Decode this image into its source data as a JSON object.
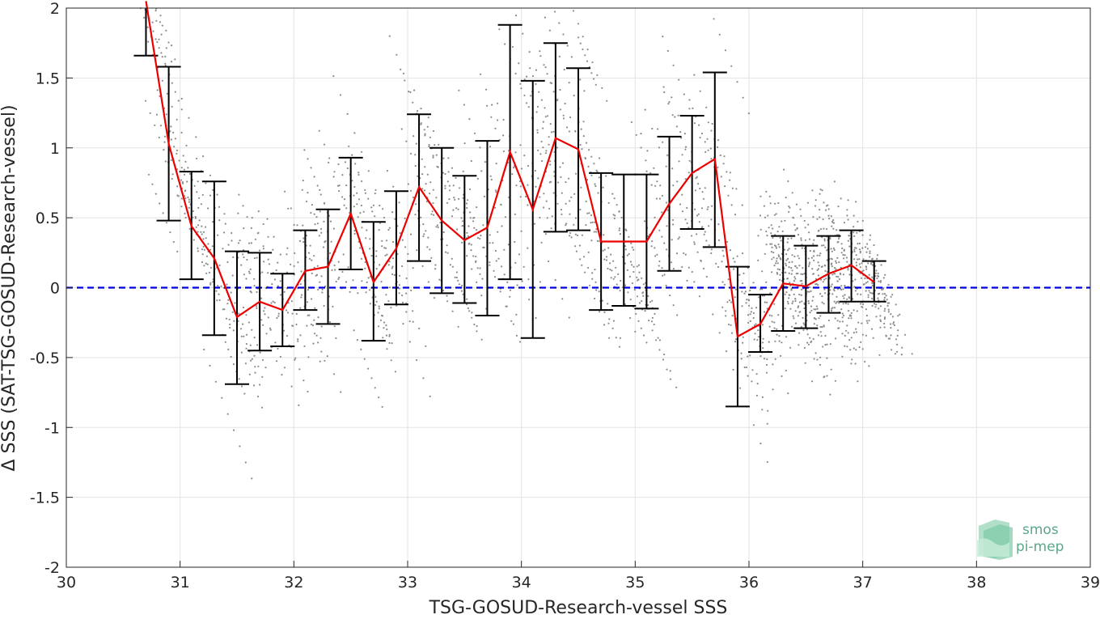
{
  "chart_data": {
    "type": "line",
    "title": "",
    "xlabel": "TSG-GOSUD-Research-vessel SSS",
    "ylabel": "Δ SSS (SAT-TSG-GOSUD-Research-vessel)",
    "xlim": [
      30,
      39
    ],
    "ylim": [
      -2,
      2
    ],
    "xticks": [
      30,
      31,
      32,
      33,
      34,
      35,
      36,
      37,
      38,
      39
    ],
    "yticks": [
      -2,
      -1.5,
      -1,
      -0.5,
      0,
      0.5,
      1,
      1.5,
      2
    ],
    "xtick_labels": [
      "30",
      "31",
      "32",
      "33",
      "34",
      "35",
      "36",
      "37",
      "38",
      "39"
    ],
    "ytick_labels": [
      "-2",
      "-1.5",
      "-1",
      "-0.5",
      "0",
      "0.5",
      "1",
      "1.5",
      "2"
    ],
    "grid": true,
    "reference_line": {
      "y": 0,
      "color": "#0000dd",
      "style": "dashed"
    },
    "mean_series": {
      "color": "#ee0000",
      "x": [
        30.7,
        30.9,
        31.1,
        31.3,
        31.5,
        31.7,
        31.9,
        32.1,
        32.3,
        32.5,
        32.7,
        32.9,
        33.1,
        33.3,
        33.5,
        33.7,
        33.9,
        34.1,
        34.3,
        34.5,
        34.7,
        34.9,
        35.1,
        35.3,
        35.5,
        35.7,
        35.9,
        36.1,
        36.3,
        36.5,
        36.7,
        36.9,
        37.1
      ],
      "y": [
        2.05,
        1.03,
        0.44,
        0.21,
        -0.21,
        -0.1,
        -0.16,
        0.12,
        0.15,
        0.53,
        0.04,
        0.28,
        0.72,
        0.48,
        0.34,
        0.43,
        0.97,
        0.56,
        1.07,
        0.99,
        0.33,
        0.33,
        0.33,
        0.6,
        0.82,
        0.92,
        -0.35,
        -0.26,
        0.03,
        0.01,
        0.1,
        0.16,
        0.04
      ]
    },
    "error_bars": {
      "color": "#000000",
      "low": [
        1.66,
        0.48,
        0.06,
        -0.34,
        -0.69,
        -0.45,
        -0.42,
        -0.16,
        -0.26,
        0.13,
        -0.38,
        -0.12,
        0.19,
        -0.04,
        -0.11,
        -0.2,
        0.06,
        -0.36,
        0.4,
        0.41,
        -0.16,
        -0.13,
        -0.15,
        0.12,
        0.42,
        0.29,
        -0.85,
        -0.46,
        -0.31,
        -0.29,
        -0.18,
        -0.1,
        -0.1
      ],
      "high": [
        2.05,
        1.58,
        0.83,
        0.76,
        0.26,
        0.25,
        0.1,
        0.41,
        0.56,
        0.93,
        0.47,
        0.69,
        1.24,
        1.0,
        0.8,
        1.05,
        1.88,
        1.48,
        1.75,
        1.57,
        0.82,
        0.81,
        0.81,
        1.08,
        1.23,
        1.54,
        0.15,
        -0.05,
        0.37,
        0.3,
        0.37,
        0.41,
        0.19
      ]
    },
    "scatter_color": "#8c8c8c",
    "logo": {
      "line1": "smos",
      "line2": "pi-mep",
      "color": "#5aa889"
    }
  }
}
